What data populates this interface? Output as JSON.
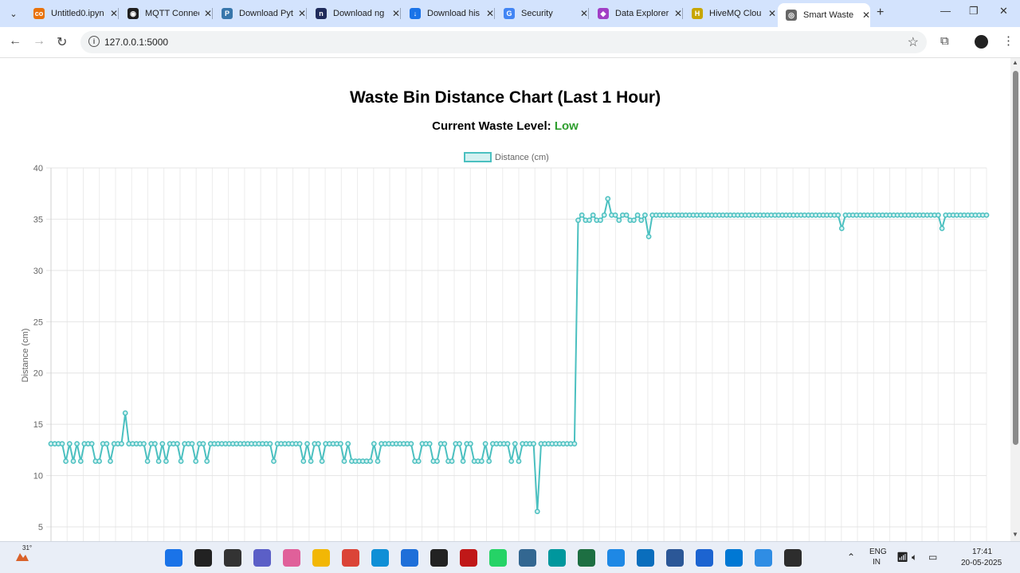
{
  "browser": {
    "tabs": [
      {
        "title": "Untitled0.ipyn",
        "icon": "colab-icon",
        "color": "#e8710a",
        "glyph": "co"
      },
      {
        "title": "MQTT Connect",
        "icon": "github-icon",
        "color": "#1f1f1f",
        "glyph": "◉"
      },
      {
        "title": "Download Pyt",
        "icon": "python-icon",
        "color": "#3776ab",
        "glyph": "P"
      },
      {
        "title": "Download ng",
        "icon": "ngrok-icon",
        "color": "#1f2b5b",
        "glyph": "n"
      },
      {
        "title": "Download his",
        "icon": "download-icon",
        "color": "#1a73e8",
        "glyph": "↓"
      },
      {
        "title": "Security",
        "icon": "google-icon",
        "color": "#4285f4",
        "glyph": "G"
      },
      {
        "title": "Data Explorer",
        "icon": "data-explorer-icon",
        "color": "#a13ec5",
        "glyph": "◆"
      },
      {
        "title": "HiveMQ Clou",
        "icon": "hivemq-icon",
        "color": "#c7a600",
        "glyph": "H"
      },
      {
        "title": "Smart Waste",
        "icon": "globe-icon",
        "color": "#666666",
        "glyph": "◎",
        "active": true
      }
    ],
    "url": "127.0.0.1:5000"
  },
  "page": {
    "title": "Waste Bin Distance Chart (Last 1 Hour)",
    "level_label": "Current Waste Level:",
    "level_value": "Low",
    "level_color": "#2e9e2e"
  },
  "chart_data": {
    "type": "line",
    "legend": [
      "Distance (cm)"
    ],
    "legend_position": "top-center",
    "ylabel": "Distance (cm)",
    "xlabel": "",
    "ylim": [
      5,
      40
    ],
    "yticks": [
      5,
      10,
      15,
      20,
      25,
      30,
      35,
      40
    ],
    "grid": true,
    "line_color": "#4bc0c0",
    "fill_color": "#d4f1f1",
    "series": [
      {
        "name": "Distance (cm)",
        "values": [
          13.1,
          13.1,
          13.1,
          13.1,
          11.4,
          13.1,
          11.4,
          13.1,
          11.4,
          13.1,
          13.1,
          13.1,
          11.4,
          11.4,
          13.1,
          13.1,
          11.4,
          13.1,
          13.1,
          13.1,
          16.1,
          13.1,
          13.1,
          13.1,
          13.1,
          13.1,
          11.4,
          13.1,
          13.1,
          11.4,
          13.1,
          11.4,
          13.1,
          13.1,
          13.1,
          11.4,
          13.1,
          13.1,
          13.1,
          11.4,
          13.1,
          13.1,
          11.4,
          13.1,
          13.1,
          13.1,
          13.1,
          13.1,
          13.1,
          13.1,
          13.1,
          13.1,
          13.1,
          13.1,
          13.1,
          13.1,
          13.1,
          13.1,
          13.1,
          13.1,
          11.4,
          13.1,
          13.1,
          13.1,
          13.1,
          13.1,
          13.1,
          13.1,
          11.4,
          13.1,
          11.4,
          13.1,
          13.1,
          11.4,
          13.1,
          13.1,
          13.1,
          13.1,
          13.1,
          11.4,
          13.1,
          11.4,
          11.4,
          11.4,
          11.4,
          11.4,
          11.4,
          13.1,
          11.4,
          13.1,
          13.1,
          13.1,
          13.1,
          13.1,
          13.1,
          13.1,
          13.1,
          13.1,
          11.4,
          11.4,
          13.1,
          13.1,
          13.1,
          11.4,
          11.4,
          13.1,
          13.1,
          11.4,
          11.4,
          13.1,
          13.1,
          11.4,
          13.1,
          13.1,
          11.4,
          11.4,
          11.4,
          13.1,
          11.4,
          13.1,
          13.1,
          13.1,
          13.1,
          13.1,
          11.4,
          13.1,
          11.4,
          13.1,
          13.1,
          13.1,
          13.1,
          6.5,
          13.1,
          13.1,
          13.1,
          13.1,
          13.1,
          13.1,
          13.1,
          13.1,
          13.1,
          13.1,
          34.9,
          35.4,
          34.9,
          34.9,
          35.4,
          34.9,
          34.9,
          35.4,
          37.0,
          35.4,
          35.4,
          34.9,
          35.4,
          35.4,
          34.9,
          34.9,
          35.4,
          34.9,
          35.4,
          33.3,
          35.4,
          35.4,
          35.4,
          35.4,
          35.4,
          35.4,
          35.4,
          35.4,
          35.4,
          35.4,
          35.4,
          35.4,
          35.4,
          35.4,
          35.4,
          35.4,
          35.4,
          35.4,
          35.4,
          35.4,
          35.4,
          35.4,
          35.4,
          35.4,
          35.4,
          35.4,
          35.4,
          35.4,
          35.4,
          35.4,
          35.4,
          35.4,
          35.4,
          35.4,
          35.4,
          35.4,
          35.4,
          35.4,
          35.4,
          35.4,
          35.4,
          35.4,
          35.4,
          35.4,
          35.4,
          35.4,
          35.4,
          35.4,
          35.4,
          35.4,
          35.4,
          34.1,
          35.4,
          35.4,
          35.4,
          35.4,
          35.4,
          35.4,
          35.4,
          35.4,
          35.4,
          35.4,
          35.4,
          35.4,
          35.4,
          35.4,
          35.4,
          35.4,
          35.4,
          35.4,
          35.4,
          35.4,
          35.4,
          35.4,
          35.4,
          35.4,
          35.4,
          35.4,
          34.1,
          35.4,
          35.4,
          35.4,
          35.4,
          35.4,
          35.4,
          35.4,
          35.4,
          35.4,
          35.4,
          35.4,
          35.4
        ]
      }
    ]
  },
  "taskbar": {
    "weather_temp": "31°",
    "lang_line1": "ENG",
    "lang_line2": "IN",
    "time": "17:41",
    "date": "20-05-2025",
    "apps": [
      {
        "name": "start-icon",
        "color": "#1a73e8"
      },
      {
        "name": "search-icon",
        "color": "#222222"
      },
      {
        "name": "file-explorer-dark-icon",
        "color": "#333333"
      },
      {
        "name": "teams-icon",
        "color": "#5b5fc7"
      },
      {
        "name": "copilot-icon",
        "color": "#e0609a"
      },
      {
        "name": "folder-icon",
        "color": "#f2b705"
      },
      {
        "name": "chrome-icon",
        "color": "#db4437"
      },
      {
        "name": "edge-icon",
        "color": "#0f8fd6"
      },
      {
        "name": "store-icon",
        "color": "#1e6fd9"
      },
      {
        "name": "dell-icon",
        "color": "#222222"
      },
      {
        "name": "mcafee-icon",
        "color": "#c01818"
      },
      {
        "name": "whatsapp-icon",
        "color": "#25d366"
      },
      {
        "name": "postgres-icon",
        "color": "#336791"
      },
      {
        "name": "arduino-icon",
        "color": "#00979d"
      },
      {
        "name": "excel-icon",
        "color": "#1d6f42"
      },
      {
        "name": "notepad-icon",
        "color": "#1e88e5"
      },
      {
        "name": "photos-icon",
        "color": "#0a6ebd"
      },
      {
        "name": "remote-desktop-icon",
        "color": "#2b5797"
      },
      {
        "name": "defender-icon",
        "color": "#1c64d1"
      },
      {
        "name": "vscode-icon",
        "color": "#0078d4"
      },
      {
        "name": "paint-icon",
        "color": "#2f8de4"
      },
      {
        "name": "terminal-icon",
        "color": "#2d2d2d"
      }
    ]
  }
}
